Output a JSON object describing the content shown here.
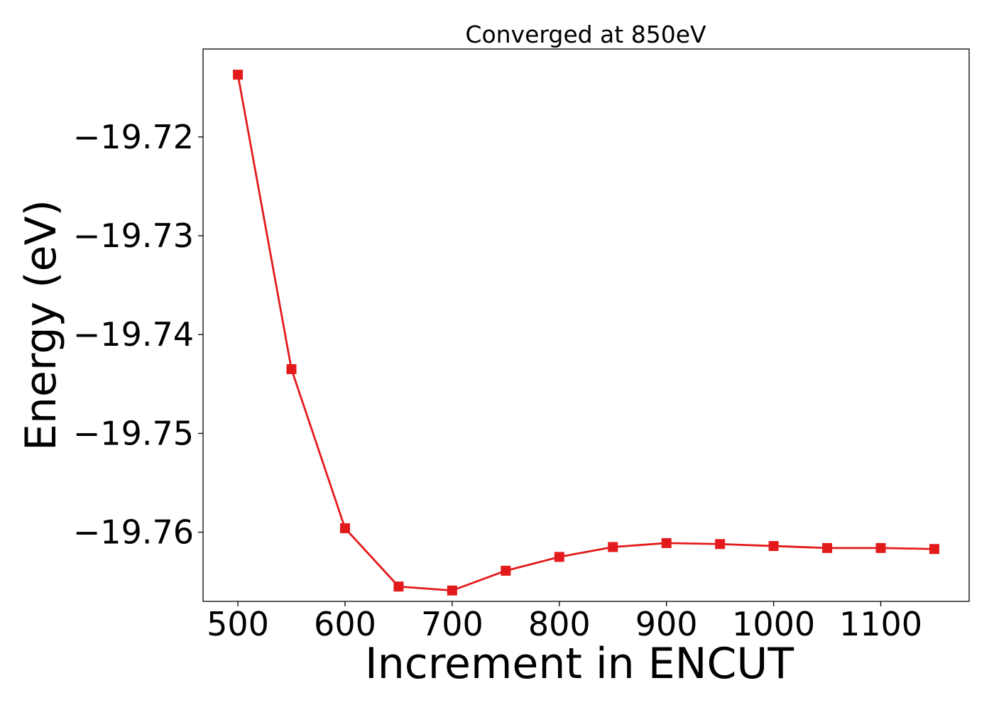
{
  "chart_data": {
    "type": "line",
    "title": "Converged at 850eV",
    "xlabel": "Increment in ENCUT",
    "ylabel": "Energy (eV)",
    "x": [
      500,
      550,
      600,
      650,
      700,
      750,
      800,
      850,
      900,
      950,
      1000,
      1050,
      1100,
      1150
    ],
    "series": [
      {
        "values": [
          -19.7137,
          -19.7435,
          -19.7596,
          -19.7655,
          -19.7659,
          -19.7639,
          -19.7625,
          -19.7615,
          -19.7611,
          -19.7612,
          -19.7614,
          -19.7616,
          -19.7616,
          -19.7617
        ],
        "color": "#e31a1c",
        "marker": "square"
      }
    ],
    "xticks": [
      500,
      600,
      700,
      800,
      900,
      1000,
      1100
    ],
    "xtick_labels": [
      "500",
      "600",
      "700",
      "800",
      "900",
      "1000",
      "1100"
    ],
    "yticks": [
      -19.72,
      -19.73,
      -19.74,
      -19.75,
      -19.76
    ],
    "ytick_labels": [
      "−19.72",
      "−19.73",
      "−19.74",
      "−19.75",
      "−19.76"
    ],
    "xlim": [
      467.5,
      1182.5
    ],
    "ylim": [
      -19.767,
      -19.7111
    ],
    "grid": false,
    "legend": "none"
  }
}
